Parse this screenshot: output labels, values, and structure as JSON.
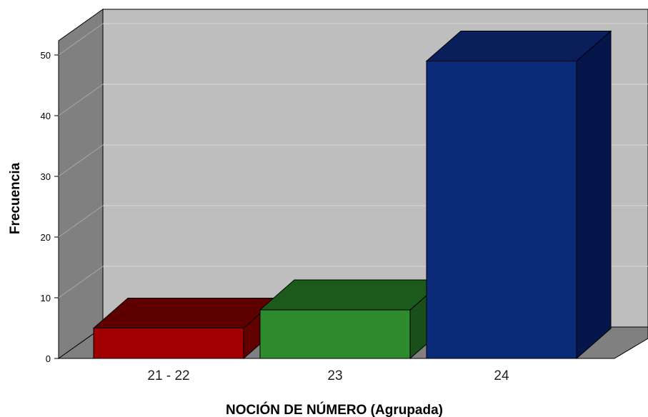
{
  "chart_data": {
    "type": "bar",
    "style": "3d",
    "title": "",
    "xlabel": "NOCIÓN DE NÚMERO (Agrupada)",
    "ylabel": "Frecuencia",
    "categories": [
      "21 - 22",
      "23",
      "24"
    ],
    "values": [
      5,
      8,
      49
    ],
    "yticks": [
      "0",
      "10",
      "20",
      "30",
      "40",
      "50"
    ],
    "ylim": [
      0,
      57.5
    ],
    "grid": true,
    "legend": "none",
    "colors": {
      "bars": [
        "#A00000",
        "#2E8B2E",
        "#0B2A78"
      ],
      "bars_top": [
        "#5E0000",
        "#1C5A1C",
        "#0A1E5C"
      ],
      "bars_side": [
        "#620000",
        "#1A4F1A",
        "#07164A"
      ],
      "back_wall": "#BEBEBE",
      "side_wall": "#808080",
      "floor": "#808080"
    }
  }
}
